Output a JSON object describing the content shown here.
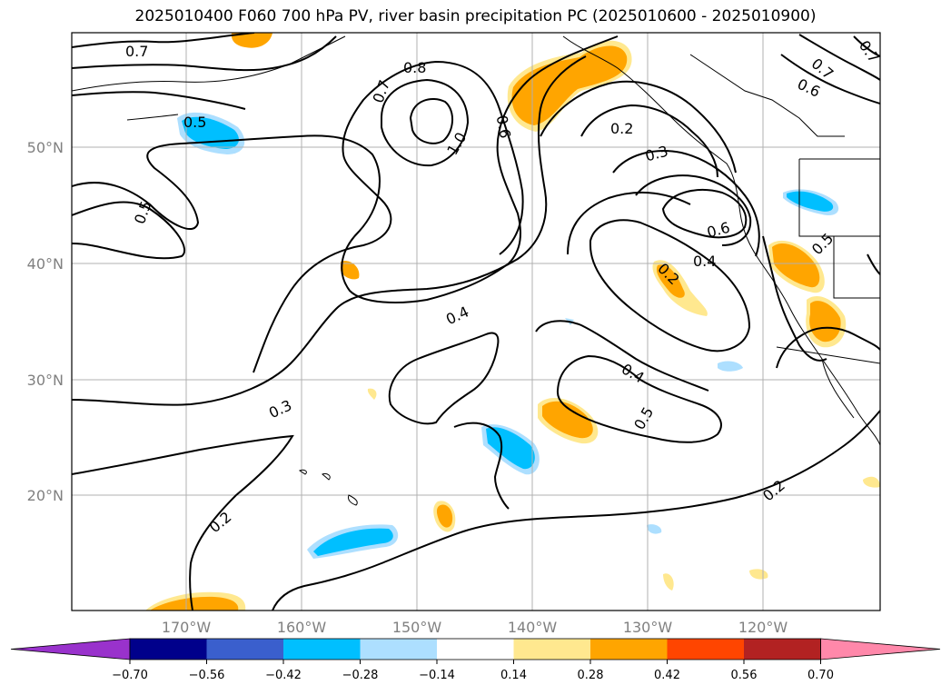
{
  "title": "2025010400 F060 700 hPa PV, river basin precipitation PC (2025010600 - 2025010900)",
  "map": {
    "lat_labels": [
      "50°N",
      "40°N",
      "30°N",
      "20°N"
    ],
    "lon_labels": [
      "170°W",
      "160°W",
      "150°W",
      "140°W",
      "130°W",
      "120°W"
    ],
    "grid": true,
    "contour_labels": [
      "0.7",
      "0.5",
      "0.5",
      "0.8",
      "0.7",
      "1.0",
      "0.6",
      "0.2",
      "0.3",
      "0.6",
      "0.4",
      "0.5",
      "0.2",
      "0.4",
      "0.4",
      "0.5",
      "0.3",
      "0.2",
      "0.2",
      "0.7",
      "0.6",
      "0.7"
    ]
  },
  "colorbar": {
    "ticks": [
      "−0.70",
      "−0.56",
      "−0.42",
      "−0.28",
      "−0.14",
      "0.14",
      "0.28",
      "0.42",
      "0.56",
      "0.70"
    ],
    "colors": [
      "#9932CC",
      "#00008B",
      "#3A5FCD",
      "#00BFFF",
      "#ADDFFF",
      "#FFFFFF",
      "#FFE88F",
      "#FFA500",
      "#FF4500",
      "#B22222",
      "#FF88AA"
    ]
  }
}
